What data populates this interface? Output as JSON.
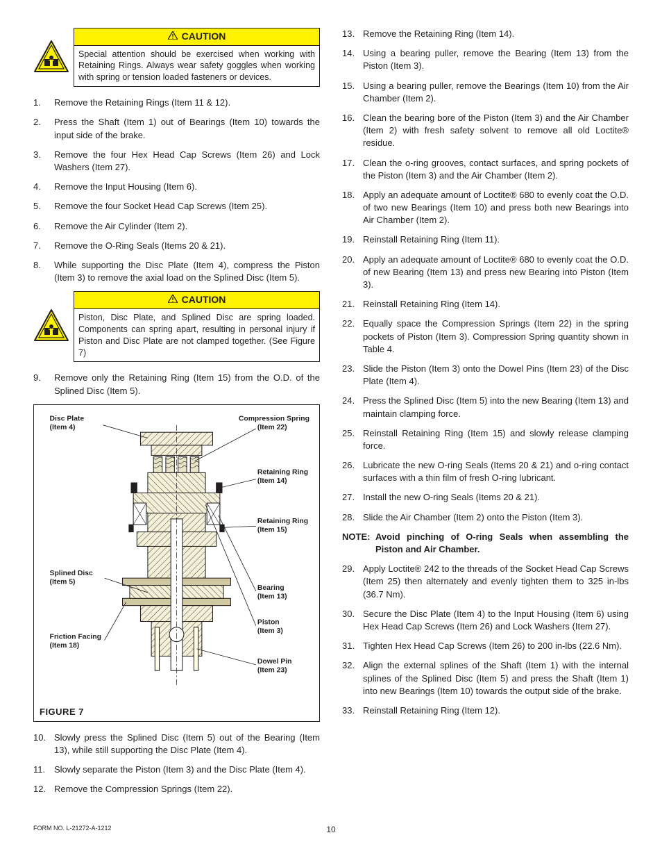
{
  "caution1": {
    "title": "CAUTION",
    "body": "Special attention should be exercised when working with Retaining Rings.  Always wear safety goggles when working with spring or tension loaded fasteners or devices."
  },
  "caution2": {
    "title": "CAUTION",
    "body": "Piston, Disc Plate, and Splined Disc are spring loaded.  Components can spring apart, resulting in personal injury if Piston and Disc Plate are not clamped together.  (See Figure 7)"
  },
  "steps_left_a": [
    {
      "n": "1.",
      "t": "Remove the Retaining Rings (Item 11 & 12)."
    },
    {
      "n": "2.",
      "t": "Press the Shaft (Item 1) out of Bearings (Item 10) towards the input side of the brake."
    },
    {
      "n": "3.",
      "t": "Remove the four Hex Head Cap Screws (Item 26) and Lock Washers (Item 27)."
    },
    {
      "n": "4.",
      "t": "Remove the Input Housing (Item 6)."
    },
    {
      "n": "5.",
      "t": "Remove the four Socket Head Cap Screws (Item 25)."
    },
    {
      "n": "6.",
      "t": "Remove the Air Cylinder (Item 2)."
    },
    {
      "n": "7.",
      "t": "Remove the O-Ring Seals (Items 20 & 21)."
    },
    {
      "n": "8.",
      "t": "While supporting the Disc Plate (Item 4), compress the Piston (Item 3) to remove the axial load on the Splined Disc (Item 5)."
    }
  ],
  "steps_left_b": [
    {
      "n": "9.",
      "t": "Remove only the Retaining Ring (Item 15) from the O.D. of the Splined Disc (Item 5)."
    }
  ],
  "steps_left_c": [
    {
      "n": "10.",
      "t": "Slowly press the Splined Disc (Item 5) out of the Bearing (Item 13), while still supporting the Disc Plate (Item 4)."
    },
    {
      "n": "11.",
      "t": "Slowly separate the Piston (Item 3) and the Disc Plate (Item 4)."
    },
    {
      "n": "12.",
      "t": "Remove the Compression Springs (Item 22)."
    }
  ],
  "steps_right": [
    {
      "n": "13.",
      "t": "Remove the Retaining Ring (Item 14)."
    },
    {
      "n": "14.",
      "t": "Using a bearing puller, remove the Bearing (Item 13) from the Piston (Item 3)."
    },
    {
      "n": "15.",
      "t": "Using a bearing puller, remove the Bearings (Item 10) from the Air Chamber (Item 2)."
    },
    {
      "n": "16.",
      "t": "Clean the bearing bore of the Piston (Item 3) and the Air Chamber (Item 2) with fresh safety solvent to remove all old Loctite® residue."
    },
    {
      "n": "17.",
      "t": "Clean the o-ring grooves, contact surfaces, and spring pockets of the Piston (Item 3) and the Air Chamber (Item 2)."
    },
    {
      "n": "18.",
      "t": "Apply an adequate amount of Loctite® 680 to evenly coat the O.D. of two new Bearings (Item 10) and press both new Bearings into Air Chamber (Item 2)."
    },
    {
      "n": "19.",
      "t": "Reinstall Retaining Ring (Item 11)."
    },
    {
      "n": "20.",
      "t": "Apply an adequate amount of Loctite® 680 to evenly coat the O.D. of new Bearing (Item 13) and press new Bearing into Piston (Item 3)."
    },
    {
      "n": "21.",
      "t": "Reinstall Retaining Ring (Item 14)."
    },
    {
      "n": "22.",
      "t": "Equally space the Compression Springs (Item 22) in the spring pockets of Piston (Item 3).  Compression Spring quantity shown in Table 4."
    },
    {
      "n": "23.",
      "t": "Slide the Piston (Item 3) onto the Dowel Pins (Item 23) of the Disc Plate (Item 4)."
    },
    {
      "n": "24.",
      "t": "Press the Splined Disc (Item 5) into the new Bearing (Item 13) and maintain clamping force."
    },
    {
      "n": "25.",
      "t": "Reinstall Retaining Ring (Item 15) and slowly release clamping force."
    },
    {
      "n": "26.",
      "t": "Lubricate the new O-ring Seals (Items 20 & 21) and o-ring contact surfaces with a thin film of fresh O-ring lubricant."
    },
    {
      "n": "27.",
      "t": "Install the new O-ring Seals (Items 20 & 21)."
    },
    {
      "n": "28.",
      "t": "Slide the Air Chamber (Item 2) onto the Piston (Item 3)."
    }
  ],
  "note": {
    "label": "NOTE:",
    "text": "Avoid pinching of O-ring Seals when assembling the Piston and Air Chamber."
  },
  "steps_right_b": [
    {
      "n": "29.",
      "t": "Apply Loctite® 242 to the threads of the Socket Head Cap Screws (Item 25) then alternately and evenly tighten them to 325 in-lbs (36.7 Nm)."
    },
    {
      "n": "30.",
      "t": "Secure the Disc Plate (Item 4) to the Input Housing (Item 6) using Hex Head Cap Screws (Item 26) and Lock Washers (Item 27)."
    },
    {
      "n": "31.",
      "t": "Tighten Hex Head Cap Screws (Item 26) to 200 in-lbs (22.6 Nm)."
    },
    {
      "n": "32.",
      "t": "Align the external splines of the Shaft (Item 1) with the internal splines of the Splined Disc (Item 5) and press the Shaft (Item 1) into new Bearings (Item 10) towards the output side of the brake."
    },
    {
      "n": "33.",
      "t": "Reinstall Retaining Ring (Item 12)."
    }
  ],
  "figure": {
    "title": "FIGURE 7",
    "labels": {
      "disc_plate": "Disc Plate",
      "disc_plate_item": "(Item 4)",
      "comp_spring": "Compression Spring",
      "comp_spring_item": "(Item 22)",
      "ret_ring14": "Retaining Ring",
      "ret_ring14_item": "(Item 14)",
      "ret_ring15": "Retaining Ring",
      "ret_ring15_item": "(Item 15)",
      "splined": "Splined Disc",
      "splined_item": "(Item 5)",
      "bearing": "Bearing",
      "bearing_item": "(Item 13)",
      "piston": "Piston",
      "piston_item": "(Item 3)",
      "friction": "Friction Facing",
      "friction_item": "(Item 18)",
      "dowel": "Dowel Pin",
      "dowel_item": "(Item 23)"
    },
    "colors": {
      "stroke": "#231f20",
      "fill_light": "#fffde7",
      "fill_hatch": "#f5f0d8",
      "fill_spring": "#e8e4c8"
    }
  },
  "footer": {
    "form_no": "FORM NO. L-21272-A-1212",
    "page": "10"
  },
  "colors": {
    "caution_bg": "#fff200",
    "icon_yellow": "#fff200",
    "icon_border": "#231f20"
  }
}
